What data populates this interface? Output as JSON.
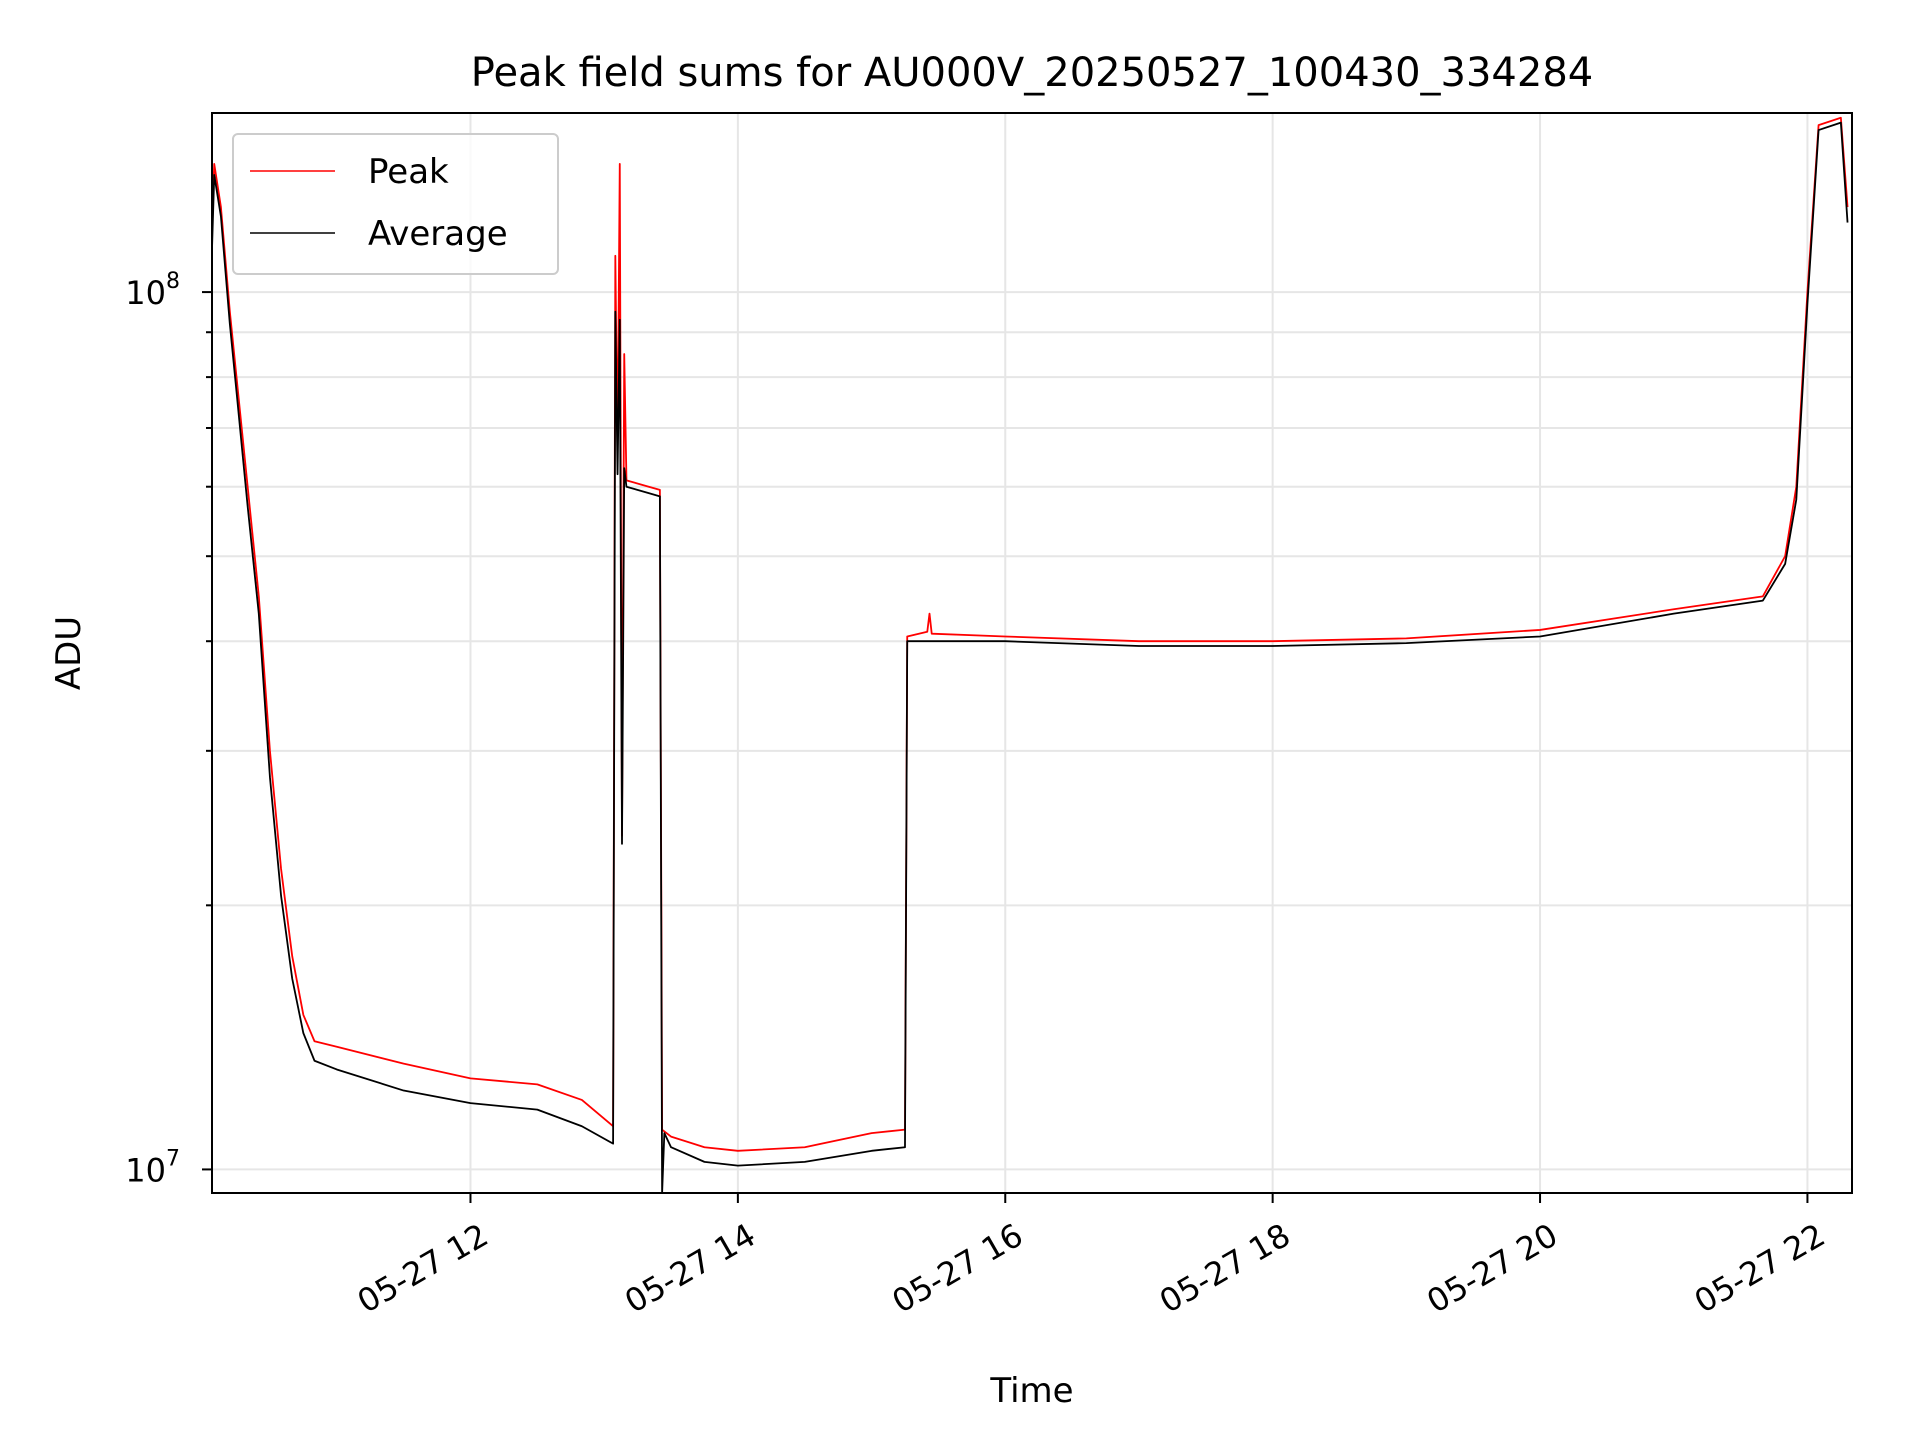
{
  "chart_data": {
    "type": "line",
    "title": "Peak field sums for AU000V_20250527_100430_334284",
    "xlabel": "Time",
    "ylabel": "ADU",
    "yscale": "log",
    "xlim": [
      "2025-05-27T10:04",
      "2025-05-27T22:20"
    ],
    "ylim": [
      9400000,
      160000000
    ],
    "x_ticks": [
      {
        "value": "2025-05-27T12:00",
        "label": "05-27 12"
      },
      {
        "value": "2025-05-27T14:00",
        "label": "05-27 14"
      },
      {
        "value": "2025-05-27T16:00",
        "label": "05-27 16"
      },
      {
        "value": "2025-05-27T18:00",
        "label": "05-27 18"
      },
      {
        "value": "2025-05-27T20:00",
        "label": "05-27 20"
      },
      {
        "value": "2025-05-27T22:00",
        "label": "05-27 22"
      }
    ],
    "y_ticks": [
      {
        "value": 10000000,
        "base": "10",
        "exp": "7"
      },
      {
        "value": 100000000,
        "base": "10",
        "exp": "8"
      }
    ],
    "grid": true,
    "legend": "top-left",
    "series": [
      {
        "name": "Peak",
        "color": "#ff0000",
        "points": [
          [
            "2025-05-27T10:04",
            118000000
          ],
          [
            "2025-05-27T10:05",
            140000000
          ],
          [
            "2025-05-27T10:08",
            125000000
          ],
          [
            "2025-05-27T10:12",
            95000000
          ],
          [
            "2025-05-27T10:15",
            80000000
          ],
          [
            "2025-05-27T10:20",
            60000000
          ],
          [
            "2025-05-27T10:25",
            45000000
          ],
          [
            "2025-05-27T10:30",
            30000000
          ],
          [
            "2025-05-27T10:35",
            22000000
          ],
          [
            "2025-05-27T10:40",
            17500000
          ],
          [
            "2025-05-27T10:45",
            15000000
          ],
          [
            "2025-05-27T10:50",
            14000000
          ],
          [
            "2025-05-27T11:00",
            13800000
          ],
          [
            "2025-05-27T11:30",
            13200000
          ],
          [
            "2025-05-27T12:00",
            12700000
          ],
          [
            "2025-05-27T12:30",
            12500000
          ],
          [
            "2025-05-27T12:50",
            12000000
          ],
          [
            "2025-05-27T13:04",
            11200000
          ],
          [
            "2025-05-27T13:05",
            110000000
          ],
          [
            "2025-05-27T13:06",
            65000000
          ],
          [
            "2025-05-27T13:07",
            140000000
          ],
          [
            "2025-05-27T13:08",
            24000000
          ],
          [
            "2025-05-27T13:09",
            85000000
          ],
          [
            "2025-05-27T13:10",
            61000000
          ],
          [
            "2025-05-27T13:20",
            60000000
          ],
          [
            "2025-05-27T13:25",
            59500000
          ],
          [
            "2025-05-27T13:26",
            11100000
          ],
          [
            "2025-05-27T13:30",
            10900000
          ],
          [
            "2025-05-27T13:45",
            10600000
          ],
          [
            "2025-05-27T14:00",
            10500000
          ],
          [
            "2025-05-27T14:30",
            10600000
          ],
          [
            "2025-05-27T15:00",
            11000000
          ],
          [
            "2025-05-27T15:15",
            11100000
          ],
          [
            "2025-05-27T15:16",
            40500000
          ],
          [
            "2025-05-27T15:25",
            41000000
          ],
          [
            "2025-05-27T15:26",
            43000000
          ],
          [
            "2025-05-27T15:27",
            40800000
          ],
          [
            "2025-05-27T16:00",
            40500000
          ],
          [
            "2025-05-27T17:00",
            40000000
          ],
          [
            "2025-05-27T18:00",
            40000000
          ],
          [
            "2025-05-27T19:00",
            40300000
          ],
          [
            "2025-05-27T20:00",
            41200000
          ],
          [
            "2025-05-27T21:00",
            43500000
          ],
          [
            "2025-05-27T21:40",
            45000000
          ],
          [
            "2025-05-27T21:50",
            50000000
          ],
          [
            "2025-05-27T21:55",
            60000000
          ],
          [
            "2025-05-27T22:00",
            100000000
          ],
          [
            "2025-05-27T22:05",
            155000000
          ],
          [
            "2025-05-27T22:15",
            158000000
          ],
          [
            "2025-05-27T22:18",
            125000000
          ]
        ]
      },
      {
        "name": "Average",
        "color": "#000000",
        "points": [
          [
            "2025-05-27T10:04",
            112000000
          ],
          [
            "2025-05-27T10:05",
            136000000
          ],
          [
            "2025-05-27T10:08",
            122000000
          ],
          [
            "2025-05-27T10:12",
            92000000
          ],
          [
            "2025-05-27T10:15",
            77000000
          ],
          [
            "2025-05-27T10:20",
            57000000
          ],
          [
            "2025-05-27T10:25",
            43000000
          ],
          [
            "2025-05-27T10:30",
            28000000
          ],
          [
            "2025-05-27T10:35",
            20500000
          ],
          [
            "2025-05-27T10:40",
            16500000
          ],
          [
            "2025-05-27T10:45",
            14300000
          ],
          [
            "2025-05-27T10:50",
            13300000
          ],
          [
            "2025-05-27T11:00",
            13000000
          ],
          [
            "2025-05-27T11:30",
            12300000
          ],
          [
            "2025-05-27T12:00",
            11900000
          ],
          [
            "2025-05-27T12:30",
            11700000
          ],
          [
            "2025-05-27T12:50",
            11200000
          ],
          [
            "2025-05-27T13:04",
            10700000
          ],
          [
            "2025-05-27T13:05",
            95000000
          ],
          [
            "2025-05-27T13:06",
            62000000
          ],
          [
            "2025-05-27T13:07",
            93000000
          ],
          [
            "2025-05-27T13:08",
            23500000
          ],
          [
            "2025-05-27T13:09",
            63000000
          ],
          [
            "2025-05-27T13:10",
            60000000
          ],
          [
            "2025-05-27T13:20",
            59000000
          ],
          [
            "2025-05-27T13:25",
            58500000
          ],
          [
            "2025-05-27T13:26",
            9400000
          ],
          [
            "2025-05-27T13:27",
            11000000
          ],
          [
            "2025-05-27T13:30",
            10600000
          ],
          [
            "2025-05-27T13:45",
            10200000
          ],
          [
            "2025-05-27T14:00",
            10100000
          ],
          [
            "2025-05-27T14:30",
            10200000
          ],
          [
            "2025-05-27T15:00",
            10500000
          ],
          [
            "2025-05-27T15:15",
            10600000
          ],
          [
            "2025-05-27T15:16",
            40000000
          ],
          [
            "2025-05-27T16:00",
            40000000
          ],
          [
            "2025-05-27T17:00",
            39500000
          ],
          [
            "2025-05-27T18:00",
            39500000
          ],
          [
            "2025-05-27T19:00",
            39800000
          ],
          [
            "2025-05-27T20:00",
            40500000
          ],
          [
            "2025-05-27T21:00",
            43000000
          ],
          [
            "2025-05-27T21:40",
            44500000
          ],
          [
            "2025-05-27T21:50",
            49000000
          ],
          [
            "2025-05-27T21:55",
            58000000
          ],
          [
            "2025-05-27T22:00",
            97000000
          ],
          [
            "2025-05-27T22:05",
            153000000
          ],
          [
            "2025-05-27T22:15",
            156000000
          ],
          [
            "2025-05-27T22:18",
            120000000
          ]
        ]
      }
    ]
  }
}
